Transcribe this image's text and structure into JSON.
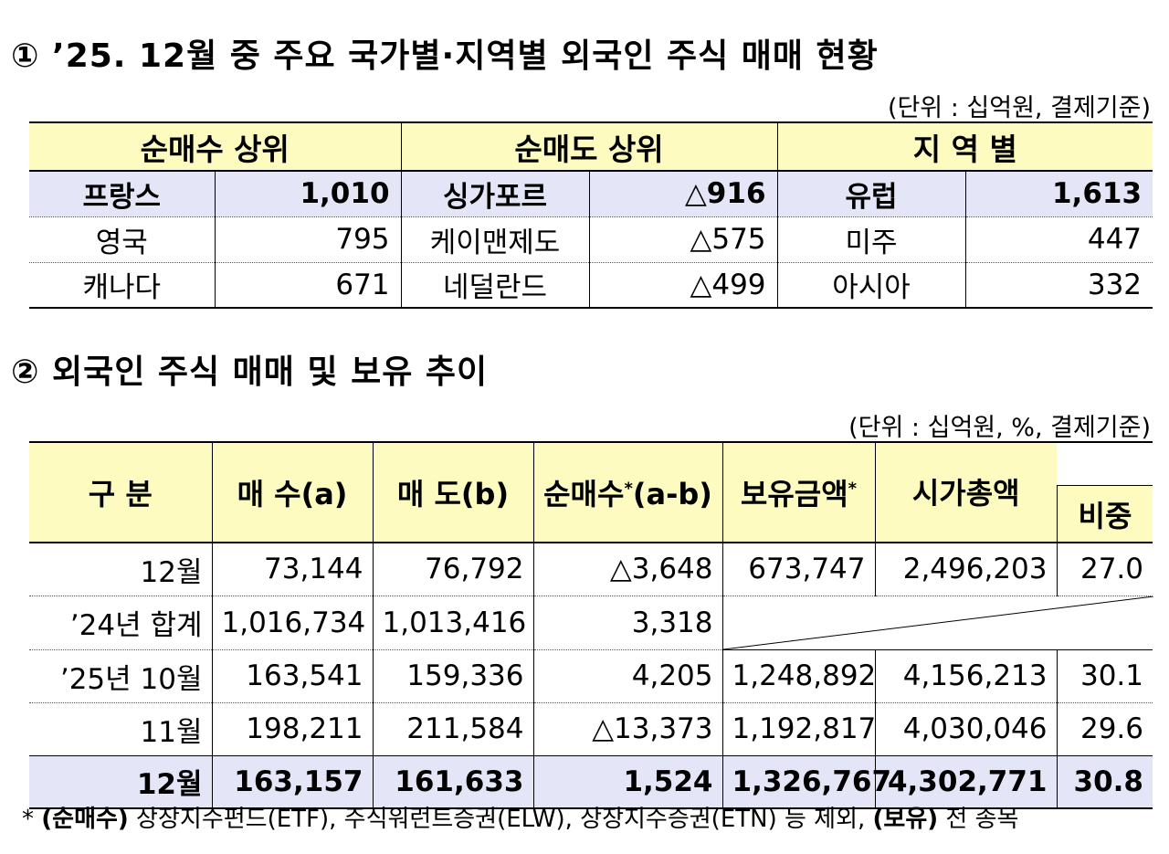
{
  "section1": {
    "title": "① ’25. 12월 중 주요 국가별·지역별 외국인 주식 매매 현황",
    "unit": "(단위 : 십억원, 결제기준)",
    "headers": [
      "순매수 상위",
      "순매도 상위",
      "지 역 별"
    ],
    "rows": [
      [
        "프랑스",
        "1,010",
        "싱가포르",
        "△916",
        "유럽",
        "1,613"
      ],
      [
        "영국",
        "795",
        "케이맨제도",
        "△575",
        "미주",
        "447"
      ],
      [
        "캐나다",
        "671",
        "네덜란드",
        "△499",
        "아시아",
        "332"
      ]
    ]
  },
  "section2": {
    "title": "② 외국인 주식 매매 및 보유 추이",
    "unit": "(단위 : 십억원, %, 결제기준)",
    "headers": {
      "category": "구 분",
      "buy": "매 수(a)",
      "sell": "매 도(b)",
      "net": "순매수",
      "net_mark": "*",
      "net_suffix": "(a-b)",
      "holding": "보유금액",
      "holding_mark": "*",
      "mcap": "시가총액",
      "ratio": "비중"
    },
    "rows": [
      [
        "12월",
        "73,144",
        "76,792",
        "△3,648",
        "673,747",
        "2,496,203",
        "27.0"
      ],
      [
        "’24년  합계",
        "1,016,734",
        "1,013,416",
        "3,318"
      ],
      [
        "’25년  10월",
        "163,541",
        "159,336",
        "4,205",
        "1,248,892",
        "4,156,213",
        "30.1"
      ],
      [
        "11월",
        "198,211",
        "211,584",
        "△13,373",
        "1,192,817",
        "4,030,046",
        "29.6"
      ],
      [
        "12월",
        "163,157",
        "161,633",
        "1,524",
        "1,326,767",
        "4,302,771",
        "30.8"
      ]
    ]
  },
  "footnote": {
    "mark": "* ",
    "label1": "(순매수)",
    "text1": " 상장지수펀드(ETF), 주식워런트증권(ELW), 상장지수증권(ETN) 등 제외, ",
    "label2": "(보유)",
    "text2": " 전 종목"
  }
}
